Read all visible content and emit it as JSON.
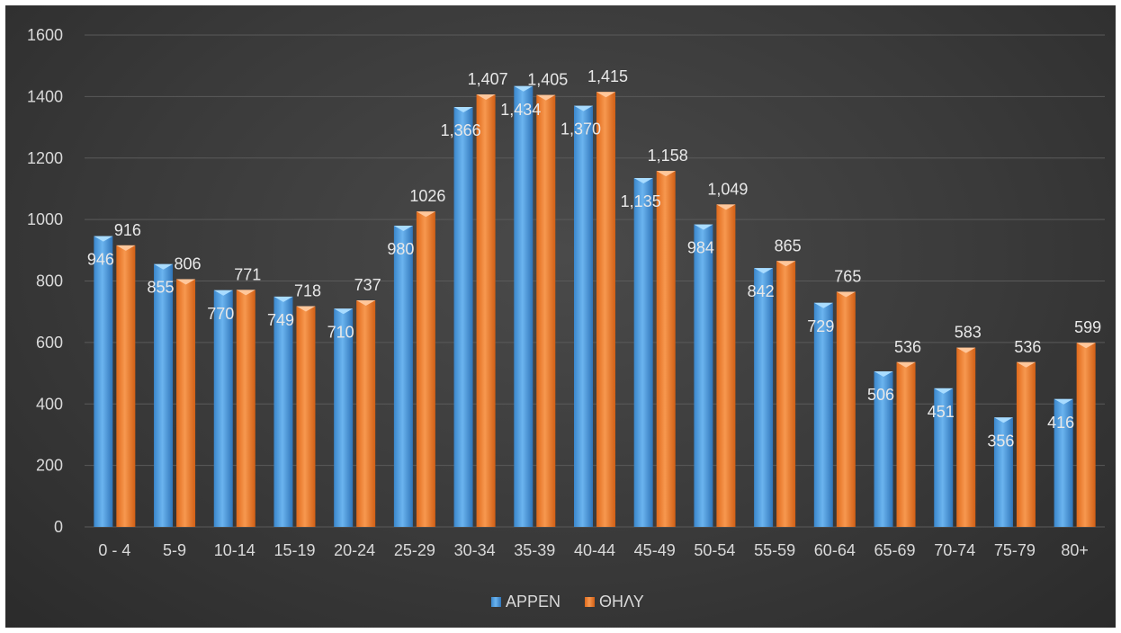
{
  "chart_data": {
    "type": "bar",
    "title": "",
    "xlabel": "",
    "ylabel": "",
    "ylim": [
      0,
      1600
    ],
    "y_ticks": [
      0,
      200,
      400,
      600,
      800,
      1000,
      1200,
      1400,
      1600
    ],
    "grid": true,
    "legend_position": "bottom",
    "categories": [
      "0 - 4",
      "5-9",
      "10-14",
      "15-19",
      "20-24",
      "25-29",
      "30-34",
      "35-39",
      "40-44",
      "45-49",
      "50-54",
      "55-59",
      "60-64",
      "65-69",
      "70-74",
      "75-79",
      "80+"
    ],
    "series": [
      {
        "name": "ΑΡΡΕΝ",
        "color": "#4f9fe0",
        "values": [
          946,
          855,
          770,
          749,
          710,
          980,
          1366,
          1434,
          1370,
          1135,
          984,
          842,
          729,
          506,
          451,
          356,
          416
        ],
        "value_labels": [
          "946",
          "855",
          "770",
          "749",
          "710",
          "980",
          "1,366",
          "1,434",
          "1,370",
          "1,135",
          "984",
          "842",
          "729",
          "506",
          "451",
          "356",
          "416"
        ]
      },
      {
        "name": "ΘΗΛΥ",
        "color": "#f07f2e",
        "values": [
          916,
          806,
          771,
          718,
          737,
          1026,
          1407,
          1405,
          1415,
          1158,
          1049,
          865,
          765,
          536,
          583,
          536,
          599
        ],
        "value_labels": [
          "916",
          "806",
          "771",
          "718",
          "737",
          "1026",
          "1,407",
          "1,405",
          "1,415",
          "1,158",
          "1,049",
          "865",
          "765",
          "536",
          "583",
          "536",
          "599"
        ]
      }
    ]
  }
}
